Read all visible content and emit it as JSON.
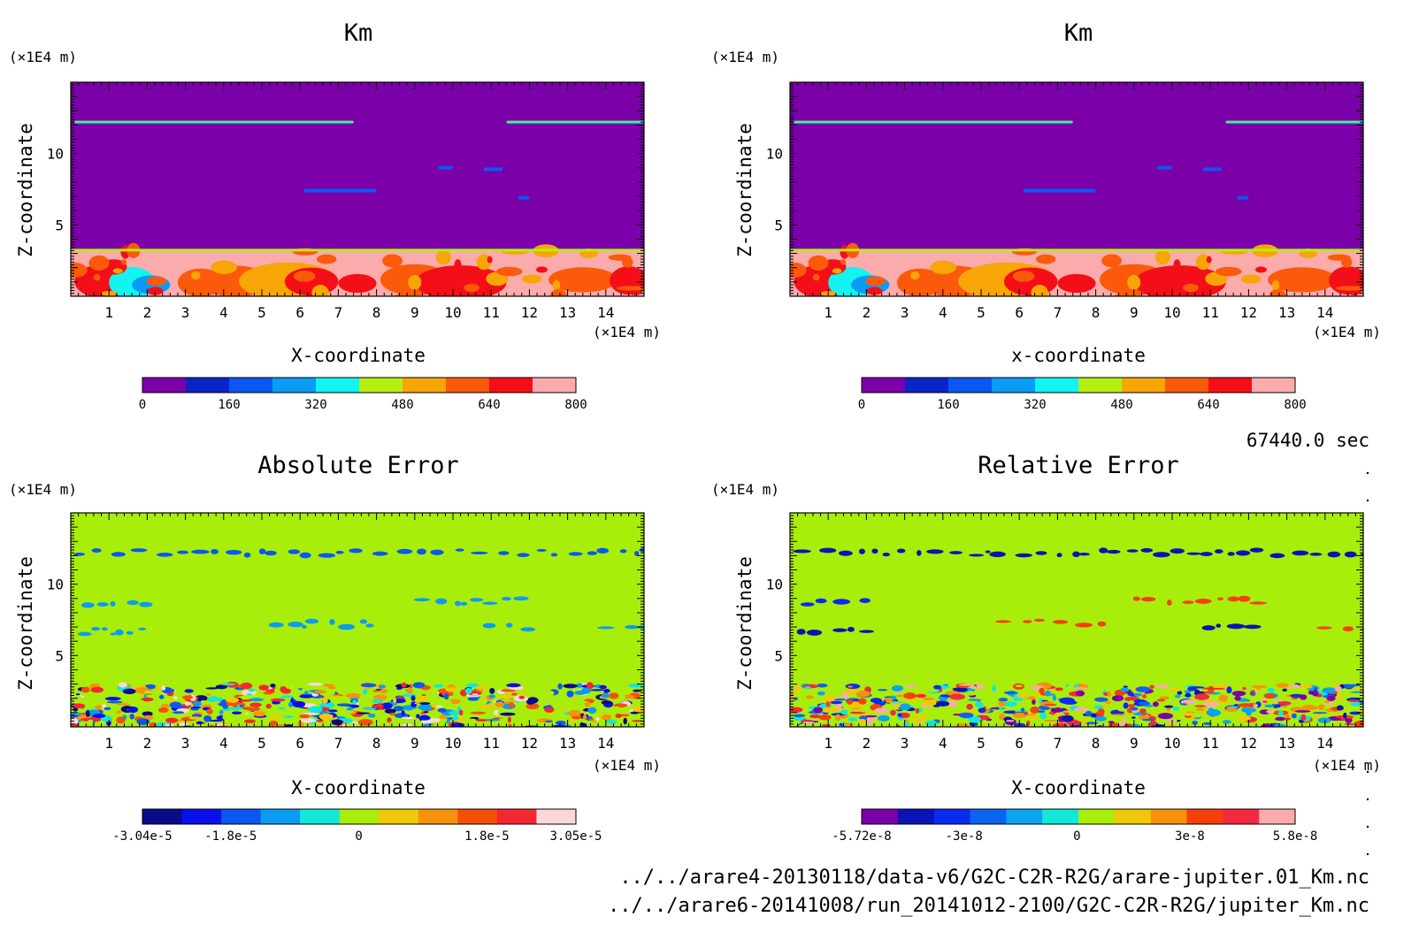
{
  "time_label": "67440.0 sec",
  "footer": {
    "file1": "../../arare4-20130118/data-v6/G2C-C2R-R2G/arare-jupiter.01_Km.nc",
    "file2": "../../arare6-20141008/run_20141012-2100/G2C-C2R-R2G/jupiter_Km.nc"
  },
  "chart_data": [
    {
      "type": "heatmap",
      "title": "Km",
      "xlabel": "X-coordinate",
      "ylabel": "Z-coordinate",
      "x_unit": "(×1E4 m)",
      "y_unit": "(×1E4 m)",
      "xlim": [
        0,
        15
      ],
      "ylim": [
        0,
        15
      ],
      "xticks": [
        1,
        2,
        3,
        4,
        5,
        6,
        7,
        8,
        9,
        10,
        11,
        12,
        13,
        14
      ],
      "yticks": [
        5,
        10
      ],
      "background_color": "#7c00a9",
      "colorbar": {
        "colors": [
          "#7c00a9",
          "#0a24c8",
          "#0b58f0",
          "#0a9cf3",
          "#13f3f0",
          "#b5ee13",
          "#f7a507",
          "#fb5a0a",
          "#f40f18",
          "#fbabab"
        ],
        "tick_values": [
          0,
          160,
          320,
          480,
          640,
          800
        ],
        "tick_labels": [
          "0",
          "160",
          "320",
          "480",
          "640",
          "800"
        ]
      },
      "features": [
        {
          "x0": 0.1,
          "x1": 7.4,
          "z": 12.2,
          "level": 3
        },
        {
          "x0": 11.4,
          "x1": 15.0,
          "z": 12.2,
          "level": 3
        },
        {
          "x0": 6.1,
          "x1": 8.0,
          "z": 7.4,
          "level": 2
        },
        {
          "x0": 9.6,
          "x1": 10.0,
          "z": 9.0,
          "level": 2
        },
        {
          "x0": 10.8,
          "x1": 11.3,
          "z": 8.9,
          "level": 2
        },
        {
          "x0": 11.7,
          "x1": 12.0,
          "z": 6.9,
          "level": 2
        }
      ],
      "boundary_layer_top": 3.2
    },
    {
      "type": "heatmap",
      "title": "Km",
      "xlabel": "x-coordinate",
      "ylabel": "Z-coordinate",
      "x_unit": "(×1E4 m)",
      "y_unit": "(×1E4 m)",
      "xlim": [
        0,
        15
      ],
      "ylim": [
        0,
        15
      ],
      "xticks": [
        1,
        2,
        3,
        4,
        5,
        6,
        7,
        8,
        9,
        10,
        11,
        12,
        13,
        14
      ],
      "yticks": [
        5,
        10
      ],
      "background_color": "#7c00a9",
      "colorbar": {
        "colors": [
          "#7c00a9",
          "#0a24c8",
          "#0b58f0",
          "#0a9cf3",
          "#13f3f0",
          "#b5ee13",
          "#f7a507",
          "#fb5a0a",
          "#f40f18",
          "#fbabab"
        ],
        "tick_values": [
          0,
          160,
          320,
          480,
          640,
          800
        ],
        "tick_labels": [
          "0",
          "160",
          "320",
          "480",
          "640",
          "800"
        ]
      },
      "features": [
        {
          "x0": 0.1,
          "x1": 7.4,
          "z": 12.2,
          "level": 3
        },
        {
          "x0": 11.4,
          "x1": 15.0,
          "z": 12.2,
          "level": 3
        },
        {
          "x0": 6.1,
          "x1": 8.0,
          "z": 7.4,
          "level": 2
        },
        {
          "x0": 9.6,
          "x1": 10.0,
          "z": 9.0,
          "level": 2
        },
        {
          "x0": 10.8,
          "x1": 11.3,
          "z": 8.9,
          "level": 2
        },
        {
          "x0": 11.7,
          "x1": 12.0,
          "z": 6.9,
          "level": 2
        }
      ],
      "boundary_layer_top": 3.2
    },
    {
      "type": "heatmap",
      "title": "Absolute Error",
      "xlabel": "X-coordinate",
      "ylabel": "Z-coordinate",
      "x_unit": "(×1E4 m)",
      "y_unit": "(×1E4 m)",
      "xlim": [
        0,
        15
      ],
      "ylim": [
        0,
        15
      ],
      "xticks": [
        1,
        2,
        3,
        4,
        5,
        6,
        7,
        8,
        9,
        10,
        11,
        12,
        13,
        14
      ],
      "yticks": [
        5,
        10
      ],
      "background_color": "#a9ee0a",
      "colorbar": {
        "colors": [
          "#0a0a8a",
          "#0a10ea",
          "#0a58f0",
          "#0a9cf0",
          "#13e8d8",
          "#a9ee0a",
          "#f0c80a",
          "#f7920a",
          "#f5500a",
          "#f42830",
          "#fbd8d8"
        ],
        "tick_values": [
          -3.04e-05,
          -1.8e-05,
          0,
          1.8e-05,
          3.05e-05
        ],
        "tick_labels": [
          "-3.04e-5",
          "-1.8e-5",
          "0",
          "1.8e-5",
          "3.05e-5"
        ]
      },
      "features": [
        {
          "x0": 0.1,
          "x1": 15.0,
          "z": 12.2,
          "level": 2
        },
        {
          "x0": 0.3,
          "x1": 2.0,
          "z": 8.7,
          "level": 3
        },
        {
          "x0": 0.2,
          "x1": 2.2,
          "z": 6.7,
          "level": 3
        },
        {
          "x0": 5.2,
          "x1": 8.1,
          "z": 7.2,
          "level": 3
        },
        {
          "x0": 9.0,
          "x1": 12.2,
          "z": 8.8,
          "level": 3
        },
        {
          "x0": 10.8,
          "x1": 12.3,
          "z": 7.0,
          "level": 3
        },
        {
          "x0": 13.8,
          "x1": 15.0,
          "z": 6.9,
          "level": 3
        }
      ],
      "boundary_layer_top": 3.0
    },
    {
      "type": "heatmap",
      "title": "Relative Error",
      "xlabel": "X-coordinate",
      "ylabel": "Z-coordinate",
      "x_unit": "(×1E4 m)",
      "y_unit": "(×1E4 m)",
      "xlim": [
        0,
        15
      ],
      "ylim": [
        0,
        15
      ],
      "xticks": [
        1,
        2,
        3,
        4,
        5,
        6,
        7,
        8,
        9,
        10,
        11,
        12,
        13,
        14
      ],
      "yticks": [
        5,
        10
      ],
      "background_color": "#a9ee0a",
      "colorbar": {
        "colors": [
          "#7c00a9",
          "#0a14b4",
          "#0a2af0",
          "#0a64f0",
          "#0aa4f0",
          "#13e8d8",
          "#a9ee0a",
          "#f0c80a",
          "#f7920a",
          "#f5400a",
          "#f42840",
          "#fbabab"
        ],
        "tick_values": [
          -5.72e-08,
          -3e-08,
          0,
          3e-08,
          5.8e-08
        ],
        "tick_labels": [
          "-5.72e-8",
          "-3e-8",
          "0",
          "3e-8",
          "5.8e-8"
        ]
      },
      "features": [
        {
          "x0": 0.1,
          "x1": 15.0,
          "z": 12.2,
          "level": 1
        },
        {
          "x0": 0.3,
          "x1": 2.0,
          "z": 8.7,
          "level": 2
        },
        {
          "x0": 0.2,
          "x1": 2.2,
          "z": 6.7,
          "level": 1
        },
        {
          "x0": 5.4,
          "x1": 8.1,
          "z": 7.3,
          "level": 9
        },
        {
          "x0": 9.0,
          "x1": 12.2,
          "z": 8.8,
          "level": 9
        },
        {
          "x0": 10.8,
          "x1": 12.3,
          "z": 7.0,
          "level": 1
        },
        {
          "x0": 13.8,
          "x1": 15.0,
          "z": 6.9,
          "level": 9
        }
      ],
      "boundary_layer_top": 3.0
    }
  ]
}
